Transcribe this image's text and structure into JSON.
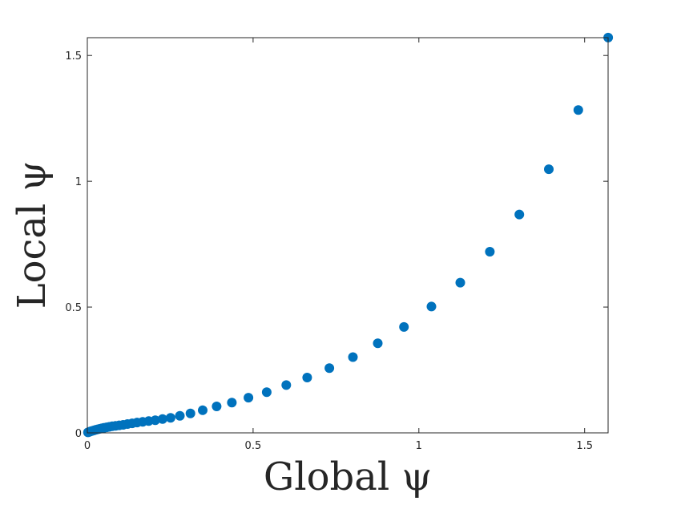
{
  "chart_data": {
    "type": "scatter",
    "title": "",
    "xlabel": "Global ψ",
    "ylabel": "Local ψ",
    "xlim": [
      0,
      1.5708
    ],
    "ylim": [
      0,
      1.5708
    ],
    "xticks": [
      "0",
      "0.5",
      "1",
      "1.5"
    ],
    "xtick_values": [
      0,
      0.5,
      1,
      1.5
    ],
    "yticks": [
      "0",
      "0.5",
      "1",
      "1.5"
    ],
    "ytick_values": [
      0,
      0.5,
      1,
      1.5
    ],
    "grid": false,
    "marker_color": "#0072BD",
    "axis_color": "#262626",
    "series": [
      {
        "x": [
          0.002,
          0.006,
          0.01,
          0.015,
          0.02,
          0.025,
          0.031,
          0.037,
          0.043,
          0.05,
          0.058,
          0.066,
          0.075,
          0.085,
          0.096,
          0.108,
          0.121,
          0.135,
          0.15,
          0.167,
          0.185,
          0.205,
          0.227,
          0.251,
          0.279,
          0.311,
          0.348,
          0.39,
          0.436,
          0.486,
          0.541,
          0.6,
          0.663,
          0.73,
          0.801,
          0.876,
          0.955,
          1.038,
          1.125,
          1.214,
          1.303,
          1.392,
          1.481,
          1.571
        ],
        "y": [
          0.002,
          0.004,
          0.006,
          0.008,
          0.01,
          0.012,
          0.014,
          0.016,
          0.018,
          0.02,
          0.022,
          0.024,
          0.026,
          0.028,
          0.03,
          0.032,
          0.035,
          0.038,
          0.041,
          0.044,
          0.047,
          0.05,
          0.055,
          0.06,
          0.068,
          0.077,
          0.09,
          0.105,
          0.12,
          0.14,
          0.162,
          0.19,
          0.22,
          0.257,
          0.301,
          0.356,
          0.421,
          0.502,
          0.597,
          0.72,
          0.868,
          1.048,
          1.283,
          1.571
        ]
      }
    ]
  }
}
